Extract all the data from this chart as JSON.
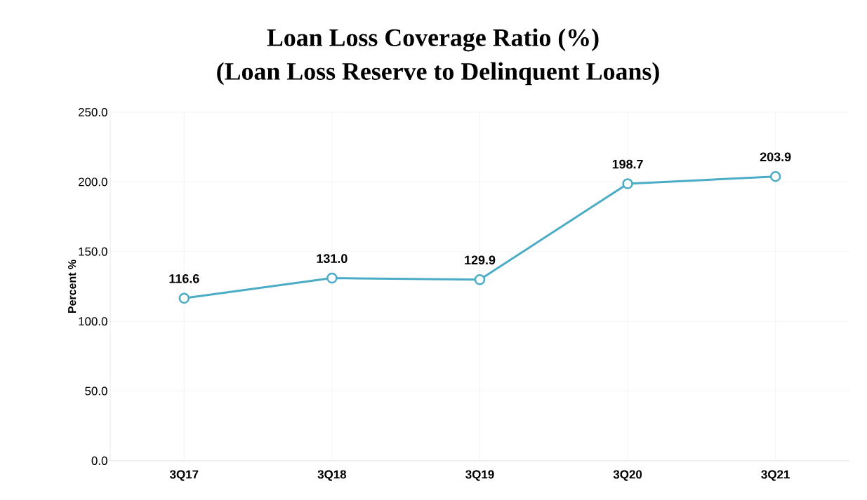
{
  "chart_data": {
    "type": "line",
    "title": "Loan Loss Coverage Ratio (%)",
    "subtitle": "(Loan Loss Reserve to Delinquent Loans)",
    "ylabel": "Percent %",
    "categories": [
      "3Q17",
      "3Q18",
      "3Q19",
      "3Q20",
      "3Q21"
    ],
    "values": [
      116.6,
      131.0,
      129.9,
      198.7,
      203.9
    ],
    "value_labels": [
      "116.6",
      "131.0",
      "129.9",
      "198.7",
      "203.9"
    ],
    "color": "#4bacc6",
    "marker": "circle",
    "line_style": "solid",
    "grid": true,
    "ylim": [
      0,
      250
    ],
    "yticks": [
      {
        "value": 0,
        "label": "0.0"
      },
      {
        "value": 50,
        "label": "50.0"
      },
      {
        "value": 100,
        "label": "100.0"
      },
      {
        "value": 150,
        "label": "150.0"
      },
      {
        "value": 200,
        "label": "200.0"
      },
      {
        "value": 250,
        "label": "250.0"
      }
    ]
  }
}
